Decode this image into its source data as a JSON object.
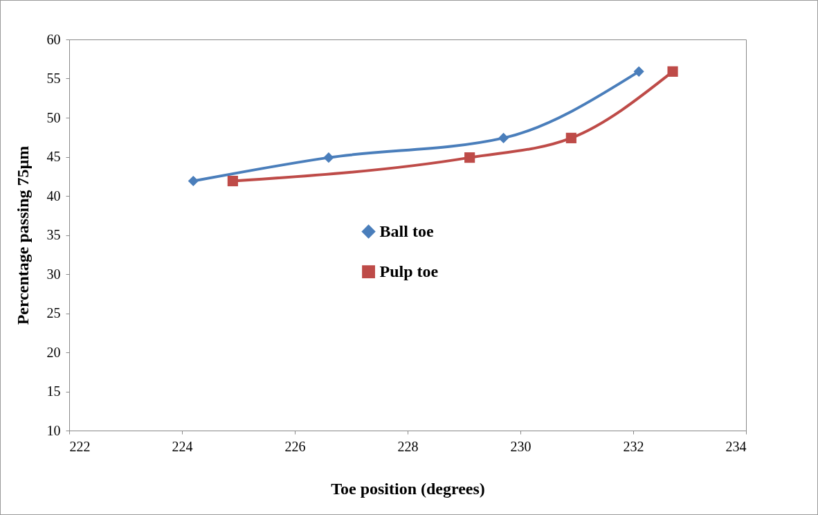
{
  "chart_data": {
    "type": "line",
    "xlabel": "Toe position (degrees)",
    "ylabel": "Percentage passing 75µm",
    "xlim": [
      222,
      234
    ],
    "xticks": [
      222,
      224,
      226,
      228,
      230,
      232,
      234
    ],
    "ylim": [
      10,
      60
    ],
    "yticks": [
      10,
      15,
      20,
      25,
      30,
      35,
      40,
      45,
      50,
      55,
      60
    ],
    "grid": false,
    "legend": "center",
    "series": [
      {
        "name": "Ball toe",
        "color": "#4a7ebb",
        "marker": "diamond",
        "x": [
          224.2,
          226.6,
          229.7,
          232.1
        ],
        "values": [
          41.9,
          44.9,
          47.4,
          55.9
        ]
      },
      {
        "name": "Pulp toe",
        "color": "#be4b48",
        "marker": "square",
        "x": [
          224.9,
          229.1,
          230.9,
          232.7
        ],
        "values": [
          41.9,
          44.9,
          47.4,
          55.9
        ]
      }
    ]
  }
}
